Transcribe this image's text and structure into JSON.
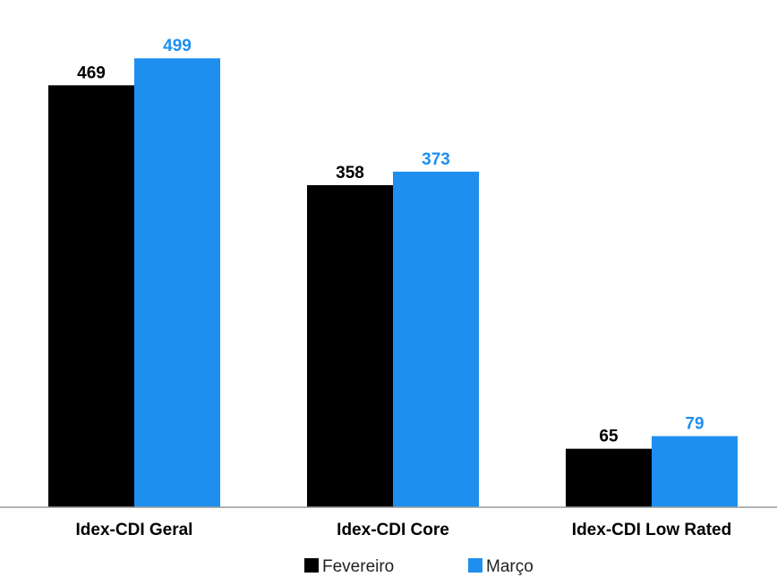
{
  "chart_data": {
    "type": "bar",
    "title": "",
    "xlabel": "",
    "ylabel": "",
    "categories": [
      "Idex-CDI Geral",
      "Idex-CDI Core",
      "Idex-CDI Low Rated"
    ],
    "series": [
      {
        "name": "Fevereiro",
        "values": [
          469,
          358,
          65
        ],
        "color": "#000000",
        "label_color": "#000000"
      },
      {
        "name": "Março",
        "values": [
          499,
          373,
          79
        ],
        "color": "#1e8fef",
        "label_color": "#1e8fef"
      }
    ],
    "ylim": [
      0,
      530
    ],
    "grid": false,
    "y_axis_visible": false,
    "data_labels": true,
    "legend": "bottom"
  }
}
